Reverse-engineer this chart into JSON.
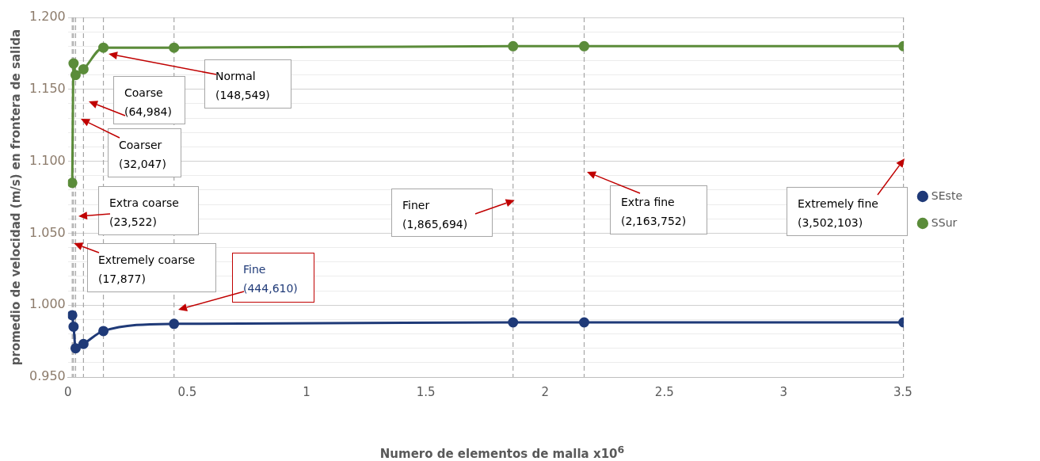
{
  "chart_data": {
    "type": "line",
    "xlabel": "Numero de elementos de malla  x10$^{6}$",
    "ylabel": "promedio de velocidad (m/s) en frontera de salida",
    "x": [
      0.017877,
      0.023522,
      0.032047,
      0.064984,
      0.148549,
      0.44461,
      1.865694,
      2.163752,
      3.502103
    ],
    "series": [
      {
        "name": "SEste",
        "color": "#1f3a78",
        "values": [
          0.993,
          0.985,
          0.97,
          0.973,
          0.982,
          0.987,
          0.988,
          0.988,
          0.988
        ]
      },
      {
        "name": "SSur",
        "color": "#5b8c3a",
        "values": [
          1.085,
          1.168,
          1.16,
          1.164,
          1.179,
          1.179,
          1.18,
          1.18,
          1.18
        ]
      }
    ],
    "xlim": [
      0,
      3.503
    ],
    "xticks": [
      0,
      0.5,
      1,
      1.5,
      2,
      2.5,
      3,
      3.5
    ],
    "ylim": [
      0.95,
      1.2
    ],
    "yticks": [
      {
        "value": 0.95,
        "label": "0.950"
      },
      {
        "value": 0.96,
        "label": null
      },
      {
        "value": 0.97,
        "label": null
      },
      {
        "value": 0.98,
        "label": null
      },
      {
        "value": 0.99,
        "label": null
      },
      {
        "value": 1.0,
        "label": "1.000"
      },
      {
        "value": 1.01,
        "label": null
      },
      {
        "value": 1.02,
        "label": null
      },
      {
        "value": 1.03,
        "label": null
      },
      {
        "value": 1.04,
        "label": null
      },
      {
        "value": 1.05,
        "label": "1.050"
      },
      {
        "value": 1.06,
        "label": null
      },
      {
        "value": 1.07,
        "label": null
      },
      {
        "value": 1.08,
        "label": null
      },
      {
        "value": 1.09,
        "label": null
      },
      {
        "value": 1.1,
        "label": "1.100"
      },
      {
        "value": 1.11,
        "label": null
      },
      {
        "value": 1.12,
        "label": null
      },
      {
        "value": 1.13,
        "label": null
      },
      {
        "value": 1.14,
        "label": null
      },
      {
        "value": 1.15,
        "label": "1.150"
      },
      {
        "value": 1.16,
        "label": null
      },
      {
        "value": 1.17,
        "label": null
      },
      {
        "value": 1.18,
        "label": null
      },
      {
        "value": 1.19,
        "label": null
      },
      {
        "value": 1.2,
        "label": "1.200"
      }
    ],
    "grid": "y",
    "legend": "right",
    "marker": "circle",
    "line_style": "solid",
    "ref_lines": [
      {
        "axis": "x",
        "value": 0.017877,
        "color": "#a6a6a6",
        "line_style": "dashed"
      },
      {
        "axis": "x",
        "value": 0.023522,
        "color": "#a6a6a6",
        "line_style": "dashed"
      },
      {
        "axis": "x",
        "value": 0.032047,
        "color": "#a6a6a6",
        "line_style": "dashed"
      },
      {
        "axis": "x",
        "value": 0.064984,
        "color": "#a6a6a6",
        "line_style": "dashed"
      },
      {
        "axis": "x",
        "value": 0.148549,
        "color": "#a6a6a6",
        "line_style": "dashed"
      },
      {
        "axis": "x",
        "value": 0.44461,
        "color": "#a6a6a6",
        "line_style": "dashed"
      },
      {
        "axis": "x",
        "value": 1.865694,
        "color": "#a6a6a6",
        "line_style": "dashed"
      },
      {
        "axis": "x",
        "value": 2.163752,
        "color": "#a6a6a6",
        "line_style": "dashed"
      },
      {
        "axis": "x",
        "value": 3.502103,
        "color": "#a6a6a6",
        "line_style": "dashed"
      }
    ],
    "annotations": [
      {
        "text": "Extremely coarse\n(17,877)",
        "x": 0.017877,
        "y": 1.043
      },
      "Extra coarse\n(23,522)",
      "Coarser\n(32,047)",
      "Coarse\n(64,984)",
      "Normal\n(148,549)",
      "Fine\n(444,610)",
      {
        "text": "Finer\n(1,865,694)",
        "x": 1.865694,
        "y": 1.073
      },
      "Extra fine\n(2,163,752)",
      "Extremely fine\n(3,502,103)"
    ]
  }
}
